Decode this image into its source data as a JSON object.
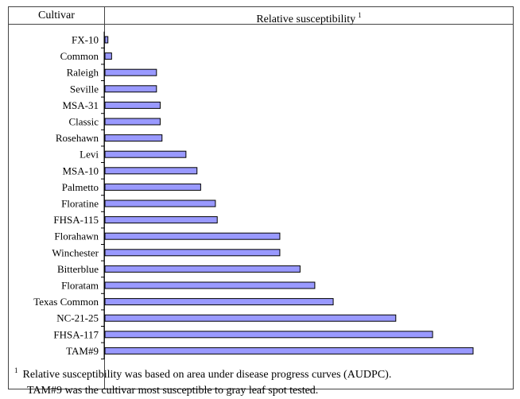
{
  "table": {
    "header_cultivar": "Cultivar",
    "header_susceptibility": "Relative susceptibility",
    "header_footnote_mark": "1"
  },
  "footnote": {
    "mark": "1",
    "line1": "Relative susceptibility was based on area under disease progress curves (AUDPC).",
    "line2": "TAM#9 was the cultivar most susceptible to gray leaf spot tested."
  },
  "chart_data": {
    "type": "bar",
    "orientation": "horizontal",
    "categories": [
      "FX-10",
      "Common",
      "Raleigh",
      "Seville",
      "MSA-31",
      "Classic",
      "Rosehawn",
      "Levi",
      "MSA-10",
      "Palmetto",
      "Floratine",
      "FHSA-115",
      "Florahawn",
      "Winchester",
      "Bitterblue",
      "Floratam",
      "Texas Common",
      "NC-21-25",
      "FHSA-117",
      "TAM#9"
    ],
    "values": [
      0.8,
      1.8,
      14.0,
      14.0,
      15.0,
      15.0,
      15.5,
      22.0,
      25.0,
      26.0,
      30.0,
      30.5,
      47.5,
      47.5,
      53.0,
      57.0,
      62.0,
      79.0,
      89.0,
      100.0
    ],
    "xlim": [
      0,
      100
    ],
    "bar_color": "#9999ff",
    "grid": false,
    "legend": "none"
  }
}
